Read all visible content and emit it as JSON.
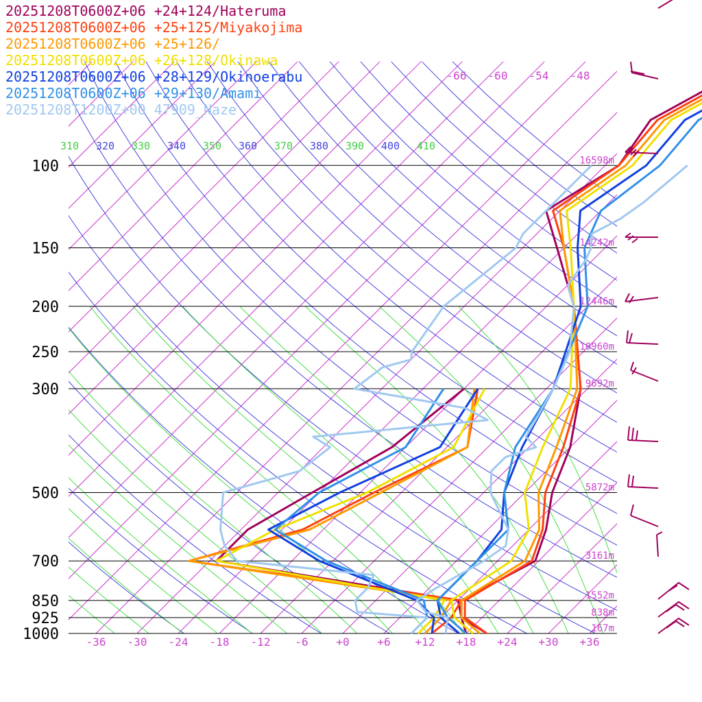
{
  "chart_data": {
    "type": "line",
    "legend_position": "top-left",
    "series": [
      {
        "name": "20251208T0600Z+06 +24+124/Hateruma",
        "color": "#a0005a",
        "temp": [
          [
            1000,
            21
          ],
          [
            925,
            15
          ],
          [
            850,
            12.5
          ],
          [
            700,
            17.5
          ],
          [
            600,
            14.5
          ],
          [
            500,
            10
          ],
          [
            400,
            6
          ],
          [
            300,
            -1
          ],
          [
            200,
            -14
          ],
          [
            150,
            -25
          ],
          [
            125,
            -32
          ],
          [
            100,
            -28
          ],
          [
            80,
            -30
          ],
          [
            60,
            -23
          ]
        ],
        "dew": [
          [
            1000,
            18
          ],
          [
            925,
            15
          ],
          [
            850,
            12
          ],
          [
            700,
            -29
          ],
          [
            600,
            -29
          ],
          [
            500,
            -25
          ],
          [
            400,
            -20
          ],
          [
            300,
            -18
          ]
        ]
      },
      {
        "name": "20251208T0600Z+06 +25+125/Miyakojima",
        "color": "#ff4010",
        "temp": [
          [
            1000,
            21
          ],
          [
            925,
            15.5
          ],
          [
            850,
            13
          ],
          [
            700,
            17
          ],
          [
            600,
            14
          ],
          [
            500,
            9
          ],
          [
            400,
            5
          ],
          [
            300,
            -1
          ],
          [
            200,
            -14
          ],
          [
            150,
            -24
          ],
          [
            125,
            -31
          ],
          [
            100,
            -28
          ],
          [
            80,
            -29
          ],
          [
            60,
            -22
          ]
        ],
        "dew": [
          [
            1000,
            13
          ],
          [
            925,
            13.5
          ],
          [
            850,
            12.5
          ],
          [
            700,
            -33
          ],
          [
            600,
            -21
          ],
          [
            500,
            -16
          ],
          [
            400,
            -9
          ],
          [
            300,
            -16
          ]
        ]
      },
      {
        "name": "20251208T0600Z+06 +25+126/",
        "color": "#ff9900",
        "temp": [
          [
            1000,
            20
          ],
          [
            925,
            15
          ],
          [
            850,
            12.5
          ],
          [
            700,
            16
          ],
          [
            600,
            13.5
          ],
          [
            500,
            8
          ],
          [
            400,
            4
          ],
          [
            300,
            -1.5
          ],
          [
            200,
            -14
          ],
          [
            150,
            -24
          ],
          [
            125,
            -30
          ],
          [
            100,
            -27
          ],
          [
            80,
            -28
          ],
          [
            60,
            -21
          ]
        ],
        "dew": [
          [
            1000,
            12
          ],
          [
            925,
            12
          ],
          [
            850,
            11
          ],
          [
            700,
            -33
          ],
          [
            600,
            -20
          ],
          [
            500,
            -15
          ],
          [
            400,
            -9
          ],
          [
            300,
            -16.5
          ]
        ]
      },
      {
        "name": "20251208T0600Z+06 +26+128/Okinawa",
        "color": "#f0e000",
        "temp": [
          [
            1000,
            19
          ],
          [
            925,
            14
          ],
          [
            850,
            11
          ],
          [
            700,
            14
          ],
          [
            600,
            12
          ],
          [
            500,
            6
          ],
          [
            400,
            2
          ],
          [
            300,
            -2.5
          ],
          [
            200,
            -14
          ],
          [
            150,
            -23
          ],
          [
            125,
            -29
          ],
          [
            100,
            -26
          ],
          [
            80,
            -27
          ],
          [
            60,
            -20
          ]
        ],
        "dew": [
          [
            1000,
            11
          ],
          [
            925,
            11
          ],
          [
            850,
            10
          ],
          [
            700,
            -29
          ],
          [
            600,
            -25
          ],
          [
            500,
            -17
          ],
          [
            400,
            -11
          ],
          [
            300,
            -15
          ]
        ]
      },
      {
        "name": "20251208T0600Z+06 +28+129/Okinoerabu",
        "color": "#1040e0",
        "temp": [
          [
            1000,
            17
          ],
          [
            925,
            12
          ],
          [
            850,
            9
          ],
          [
            700,
            9
          ],
          [
            600,
            8
          ],
          [
            500,
            3
          ],
          [
            400,
            -1
          ],
          [
            300,
            -5
          ],
          [
            200,
            -13
          ],
          [
            150,
            -22
          ],
          [
            125,
            -27
          ],
          [
            100,
            -24
          ],
          [
            80,
            -25
          ],
          [
            60,
            -18
          ]
        ],
        "dew": [
          [
            1000,
            13
          ],
          [
            925,
            11
          ],
          [
            850,
            6
          ],
          [
            700,
            -14
          ],
          [
            600,
            -26
          ],
          [
            500,
            -21
          ],
          [
            400,
            -13
          ],
          [
            300,
            -16
          ]
        ]
      },
      {
        "name": "20251208T0600Z+06 +29+130/Amami",
        "color": "#3090e8",
        "temp": [
          [
            1000,
            18
          ],
          [
            925,
            13
          ],
          [
            850,
            9
          ],
          [
            700,
            9
          ],
          [
            600,
            9
          ],
          [
            500,
            3
          ],
          [
            400,
            -2
          ],
          [
            300,
            -5
          ],
          [
            200,
            -12
          ],
          [
            150,
            -21
          ],
          [
            125,
            -24
          ],
          [
            100,
            -22
          ],
          [
            80,
            -23
          ],
          [
            60,
            -16
          ]
        ],
        "dew": [
          [
            1000,
            10
          ],
          [
            925,
            10
          ],
          [
            850,
            7
          ],
          [
            700,
            -13
          ],
          [
            600,
            -25
          ],
          [
            500,
            -24
          ],
          [
            400,
            -18
          ],
          [
            300,
            -21
          ]
        ]
      },
      {
        "name": "20251208T1200Z+00 47909_Naze",
        "color": "#a0c8f0",
        "temp": [
          [
            1000,
            15
          ],
          [
            925,
            13
          ],
          [
            900,
            9
          ],
          [
            850,
            6
          ],
          [
            800,
            7
          ],
          [
            700,
            10
          ],
          [
            650,
            11
          ],
          [
            600,
            9
          ],
          [
            500,
            1
          ],
          [
            450,
            -2
          ],
          [
            420,
            -2
          ],
          [
            400,
            1
          ],
          [
            380,
            -2
          ],
          [
            350,
            -3
          ],
          [
            300,
            -5
          ],
          [
            250,
            -8
          ],
          [
            200,
            -14
          ],
          [
            180,
            -18
          ],
          [
            160,
            -19
          ],
          [
            150,
            -20
          ],
          [
            140,
            -22
          ],
          [
            130,
            -20
          ],
          [
            120,
            -19
          ],
          [
            100,
            -18
          ]
        ],
        "dew": [
          [
            1000,
            10
          ],
          [
            925,
            10
          ],
          [
            900,
            -1
          ],
          [
            850,
            -3
          ],
          [
            800,
            -3
          ],
          [
            750,
            -4
          ],
          [
            700,
            -26
          ],
          [
            650,
            -30
          ],
          [
            600,
            -33
          ],
          [
            500,
            -38
          ],
          [
            450,
            -30
          ],
          [
            400,
            -29
          ],
          [
            380,
            -33
          ],
          [
            350,
            -10
          ],
          [
            330,
            -15
          ],
          [
            300,
            -34
          ],
          [
            270,
            -33
          ],
          [
            260,
            -30
          ],
          [
            250,
            -31
          ],
          [
            200,
            -33
          ],
          [
            150,
            -31
          ],
          [
            140,
            -32
          ],
          [
            120,
            -32
          ],
          [
            100,
            -32
          ]
        ]
      }
    ],
    "pressure_levels": [
      100,
      150,
      200,
      250,
      300,
      500,
      700,
      850,
      925,
      1000
    ],
    "pressure_labels": [
      "100",
      "150",
      "200",
      "250",
      "300",
      "500",
      "700",
      "850",
      "925",
      "1000"
    ],
    "heights": [
      {
        "p": 100,
        "label": "16598m"
      },
      {
        "p": 150,
        "label": "14242m"
      },
      {
        "p": 200,
        "label": "12446m"
      },
      {
        "p": 250,
        "label": "10960m"
      },
      {
        "p": 300,
        "label": "9692m"
      },
      {
        "p": 500,
        "label": "5872m"
      },
      {
        "p": 700,
        "label": "3161m"
      },
      {
        "p": 850,
        "label": "1552m"
      },
      {
        "p": 925,
        "label": "838m"
      },
      {
        "p": 1000,
        "label": "167m"
      }
    ],
    "x_ticks": [
      -36,
      -30,
      -24,
      -18,
      -12,
      -6,
      0,
      6,
      12,
      18,
      24,
      30,
      36
    ],
    "x_tick_labels": [
      "-36",
      "-30",
      "-24",
      "-18",
      "-12",
      "-6",
      "+0",
      "+6",
      "+12",
      "+18",
      "+24",
      "+30",
      "+36"
    ],
    "top_temp_labels": [
      "-66",
      "-60",
      "-54",
      "-48"
    ],
    "theta_labels": [
      {
        "text": "310",
        "color": "#44cc44"
      },
      {
        "text": "320",
        "color": "#4444dd"
      },
      {
        "text": "330",
        "color": "#44cc44"
      },
      {
        "text": "340",
        "color": "#4444dd"
      },
      {
        "text": "350",
        "color": "#44cc44"
      },
      {
        "text": "360",
        "color": "#4444dd"
      },
      {
        "text": "370",
        "color": "#44cc44"
      },
      {
        "text": "380",
        "color": "#4444dd"
      },
      {
        "text": "390",
        "color": "#44cc44"
      },
      {
        "text": "400",
        "color": "#4444dd"
      },
      {
        "text": "410",
        "color": "#44cc44"
      }
    ],
    "colors": {
      "isotherm": "#cc33cc",
      "dry_adiabat": "#4444dd",
      "moist_adiabat": "#44dd44",
      "isobar": "#000000",
      "wind_barb": "#a0005a",
      "axis_text": "#cc44cc",
      "pressure_text": "#000000"
    },
    "grid": true
  }
}
